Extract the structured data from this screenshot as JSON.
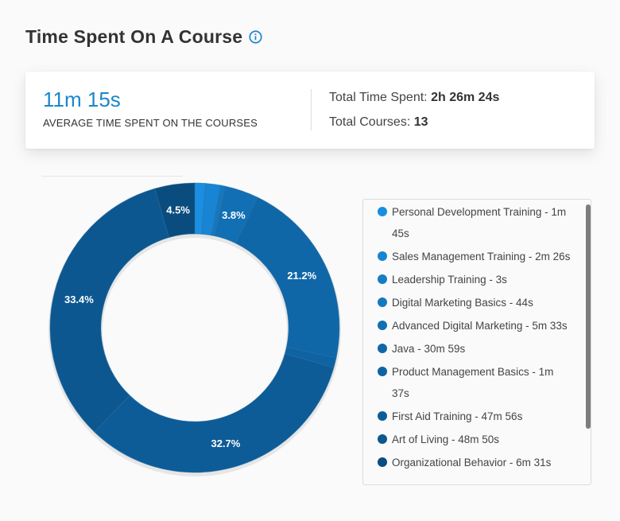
{
  "header": {
    "title": "Time Spent On A Course"
  },
  "summary": {
    "average_value": "11m 15s",
    "average_label": "AVERAGE TIME SPENT ON THE COURSES",
    "total_time_label": "Total Time Spent:",
    "total_time_value": "2h 26m 24s",
    "total_courses_label": "Total Courses:",
    "total_courses_value": "13"
  },
  "chart_data": {
    "type": "pie",
    "subtype": "donut",
    "title": "Time Spent On A Course",
    "legend_position": "right",
    "slices": [
      {
        "label": "Personal Development Training - 1m 45s",
        "value": 105,
        "percent_label": "",
        "color": "#1a8ee0"
      },
      {
        "label": "Sales Management Training - 2m 26s",
        "value": 146,
        "percent_label": "",
        "color": "#1785d3"
      },
      {
        "label": "Leadership Training - 3s",
        "value": 3,
        "percent_label": "",
        "color": "#157cc6"
      },
      {
        "label": "Digital Marketing Basics - 44s",
        "value": 44,
        "percent_label": "",
        "color": "#1478bf"
      },
      {
        "label": "Advanced Digital Marketing - 5m 33s",
        "value": 333,
        "percent_label": "3.8%",
        "color": "#126fb4"
      },
      {
        "label": "Java - 30m 59s",
        "value": 1859,
        "percent_label": "21.2%",
        "color": "#1067a8"
      },
      {
        "label": "Product Management Basics - 1m 37s",
        "value": 97,
        "percent_label": "",
        "color": "#0f63a2"
      },
      {
        "label": "First Aid Training - 47m 56s",
        "value": 2876,
        "percent_label": "32.7%",
        "color": "#0d5c98"
      },
      {
        "label": "Art of Living - 48m 50s",
        "value": 2930,
        "percent_label": "33.4%",
        "color": "#0c578f"
      },
      {
        "label": "Organizational Behavior - 6m 31s",
        "value": 391,
        "percent_label": "4.5%",
        "color": "#0a4c7e"
      }
    ]
  }
}
